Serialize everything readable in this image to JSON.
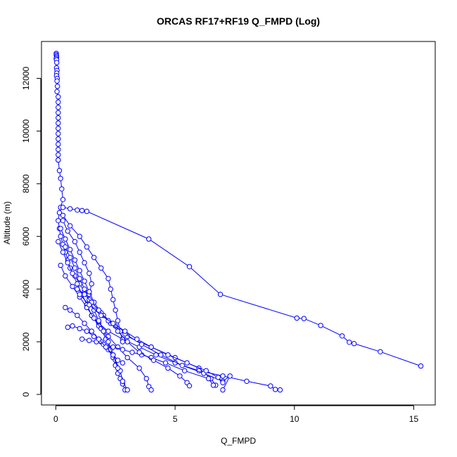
{
  "chart_data": {
    "type": "line",
    "title": "ORCAS RF17+RF19 Q_FMPD (Log)",
    "xlabel": "Q_FMPD",
    "ylabel": "Altitude (m)",
    "xlim": [
      -0.6,
      15.9
    ],
    "ylim": [
      -400,
      13400
    ],
    "xticks": [
      0,
      5,
      10,
      15
    ],
    "yticks": [
      0,
      2000,
      4000,
      6000,
      8000,
      10000,
      12000
    ],
    "grid": false,
    "marker": "open-circle",
    "colors": {
      "series": "#0000ff",
      "axis": "#000000"
    },
    "series": [
      {
        "x": [
          0.02,
          0.02,
          0.03,
          0.03,
          0.02,
          0.03,
          0.04,
          0.03,
          0.05,
          0.04,
          0.03,
          0.06,
          0.05,
          0.07,
          0.05,
          0.1,
          0.1,
          0.1,
          0.1,
          0.1,
          0.1,
          0.1,
          0.1,
          0.1,
          0.1,
          0.1,
          0.1,
          0.1
        ],
        "y": [
          12950,
          12900,
          12850,
          12800,
          12750,
          12700,
          12600,
          12400,
          12300,
          12200,
          12100,
          12000,
          11900,
          11700,
          11500,
          11300,
          11100,
          10900,
          10700,
          10500,
          10300,
          10100,
          9900,
          9700,
          9500,
          9300,
          9100,
          8900
        ]
      },
      {
        "x": [
          0.1,
          0.15,
          0.2,
          0.25,
          0.3,
          0.2,
          0.15,
          0.1,
          0.15,
          0.2,
          0.3,
          0.4,
          0.5,
          0.6,
          0.8,
          1.0,
          1.2,
          1.5,
          2.0,
          2.5,
          3.0,
          4.0,
          5.0,
          6.0,
          6.5,
          6.7
        ],
        "y": [
          8900,
          8500,
          8200,
          7800,
          7400,
          7100,
          6900,
          6600,
          6300,
          6000,
          5700,
          5400,
          5100,
          4800,
          4500,
          4200,
          3900,
          3500,
          3000,
          2600,
          2200,
          1800,
          1400,
          1000,
          600,
          350
        ]
      },
      {
        "x": [
          0.3,
          0.6,
          0.9,
          1.1,
          1.3,
          3.9,
          5.6,
          6.9,
          10.1,
          10.4,
          11.1,
          12.0,
          12.3,
          12.5,
          13.6,
          15.3
        ],
        "y": [
          7100,
          7050,
          7000,
          6980,
          6950,
          5900,
          4850,
          3800,
          2900,
          2880,
          2620,
          2220,
          1980,
          1930,
          1620,
          1080
        ]
      },
      {
        "x": [
          0.3,
          0.5,
          0.8,
          1.0,
          1.2,
          1.4,
          1.5,
          1.4,
          1.3,
          1.5,
          1.8,
          2.2,
          2.8,
          3.5,
          4.2,
          5.0,
          6.0,
          7.0,
          8.0,
          9.0,
          9.2,
          9.4
        ],
        "y": [
          6600,
          6200,
          5800,
          5400,
          5000,
          4600,
          4200,
          3800,
          3400,
          3000,
          2700,
          2400,
          2100,
          1800,
          1500,
          1200,
          900,
          700,
          500,
          320,
          190,
          170
        ]
      },
      {
        "x": [
          0.2,
          0.4,
          0.6,
          0.8,
          1.0,
          1.2,
          1.4,
          1.6,
          1.9,
          2.3,
          2.9,
          3.6,
          4.4,
          5.3,
          6.2,
          7.0,
          7.3,
          7.0
        ],
        "y": [
          6300,
          5900,
          5500,
          5100,
          4700,
          4300,
          3900,
          3500,
          3100,
          2700,
          2300,
          1900,
          1500,
          1100,
          800,
          500,
          700,
          170
        ]
      },
      {
        "x": [
          0.1,
          0.3,
          0.5,
          0.7,
          0.9,
          1.1,
          1.3,
          1.5,
          1.8,
          2.2,
          2.6,
          3.0,
          3.5,
          3.8,
          3.9,
          4.0
        ],
        "y": [
          5800,
          5400,
          5000,
          4600,
          4200,
          3800,
          3400,
          3000,
          2600,
          2200,
          1800,
          1400,
          1000,
          600,
          300,
          170
        ]
      },
      {
        "x": [
          0.5,
          0.7,
          1.0,
          1.3,
          1.6,
          1.9,
          2.2,
          2.4,
          2.5,
          2.6,
          2.7,
          2.8,
          2.9
        ],
        "y": [
          2550,
          2600,
          2500,
          2400,
          2200,
          2000,
          1700,
          1400,
          1100,
          800,
          600,
          400,
          170
        ]
      },
      {
        "x": [
          0.2,
          0.4,
          0.7,
          1.0,
          1.3,
          1.6,
          1.9,
          2.1,
          2.3,
          2.5,
          2.7,
          2.8,
          3.0
        ],
        "y": [
          4900,
          4500,
          4100,
          3700,
          3300,
          2900,
          2500,
          2100,
          1700,
          1300,
          900,
          500,
          170
        ]
      },
      {
        "x": [
          0.4,
          0.6,
          0.8,
          1.0,
          1.2,
          1.4,
          1.6,
          1.8,
          2.0,
          2.2,
          2.4,
          2.6
        ],
        "y": [
          5600,
          5200,
          4800,
          4400,
          4000,
          3600,
          3200,
          2800,
          2400,
          2000,
          1500,
          1000
        ]
      },
      {
        "x": [
          0.3,
          0.6,
          1.0,
          1.3,
          1.6,
          1.9,
          2.2,
          2.3,
          2.4,
          2.5,
          2.6,
          2.7,
          2.8
        ],
        "y": [
          6800,
          6400,
          6000,
          5600,
          5200,
          4800,
          4400,
          4000,
          3600,
          3200,
          2800,
          2400,
          2000
        ]
      },
      {
        "x": [
          1.1,
          1.4,
          1.7,
          2.0,
          2.4,
          2.8,
          3.2,
          3.6,
          4.0,
          4.6,
          5.4,
          6.4,
          6.6
        ],
        "y": [
          2100,
          2050,
          2000,
          1900,
          1800,
          1700,
          1600,
          1500,
          1400,
          1200,
          900,
          600,
          350
        ]
      },
      {
        "x": [
          0.4,
          0.6,
          0.9,
          1.2,
          1.5,
          1.8,
          2.1,
          2.4,
          2.6,
          2.8
        ],
        "y": [
          3300,
          3200,
          3000,
          2700,
          2400,
          2100,
          1800,
          1500,
          1300,
          1200
        ]
      },
      {
        "x": [
          0.9,
          1.2,
          1.5,
          1.8,
          2.2,
          2.6,
          3.0,
          3.5,
          4.1,
          4.7,
          5.2,
          5.5,
          5.6
        ],
        "y": [
          4000,
          3800,
          3500,
          3200,
          2800,
          2400,
          2000,
          1600,
          1300,
          1000,
          700,
          450,
          330
        ]
      },
      {
        "x": [
          1.0,
          1.4,
          1.9,
          2.4,
          2.9,
          3.4,
          4.0,
          4.7,
          5.5,
          6.3,
          6.8,
          7.0
        ],
        "y": [
          3800,
          3400,
          3000,
          2700,
          2400,
          2100,
          1800,
          1500,
          1200,
          900,
          650,
          450
        ]
      }
    ]
  }
}
